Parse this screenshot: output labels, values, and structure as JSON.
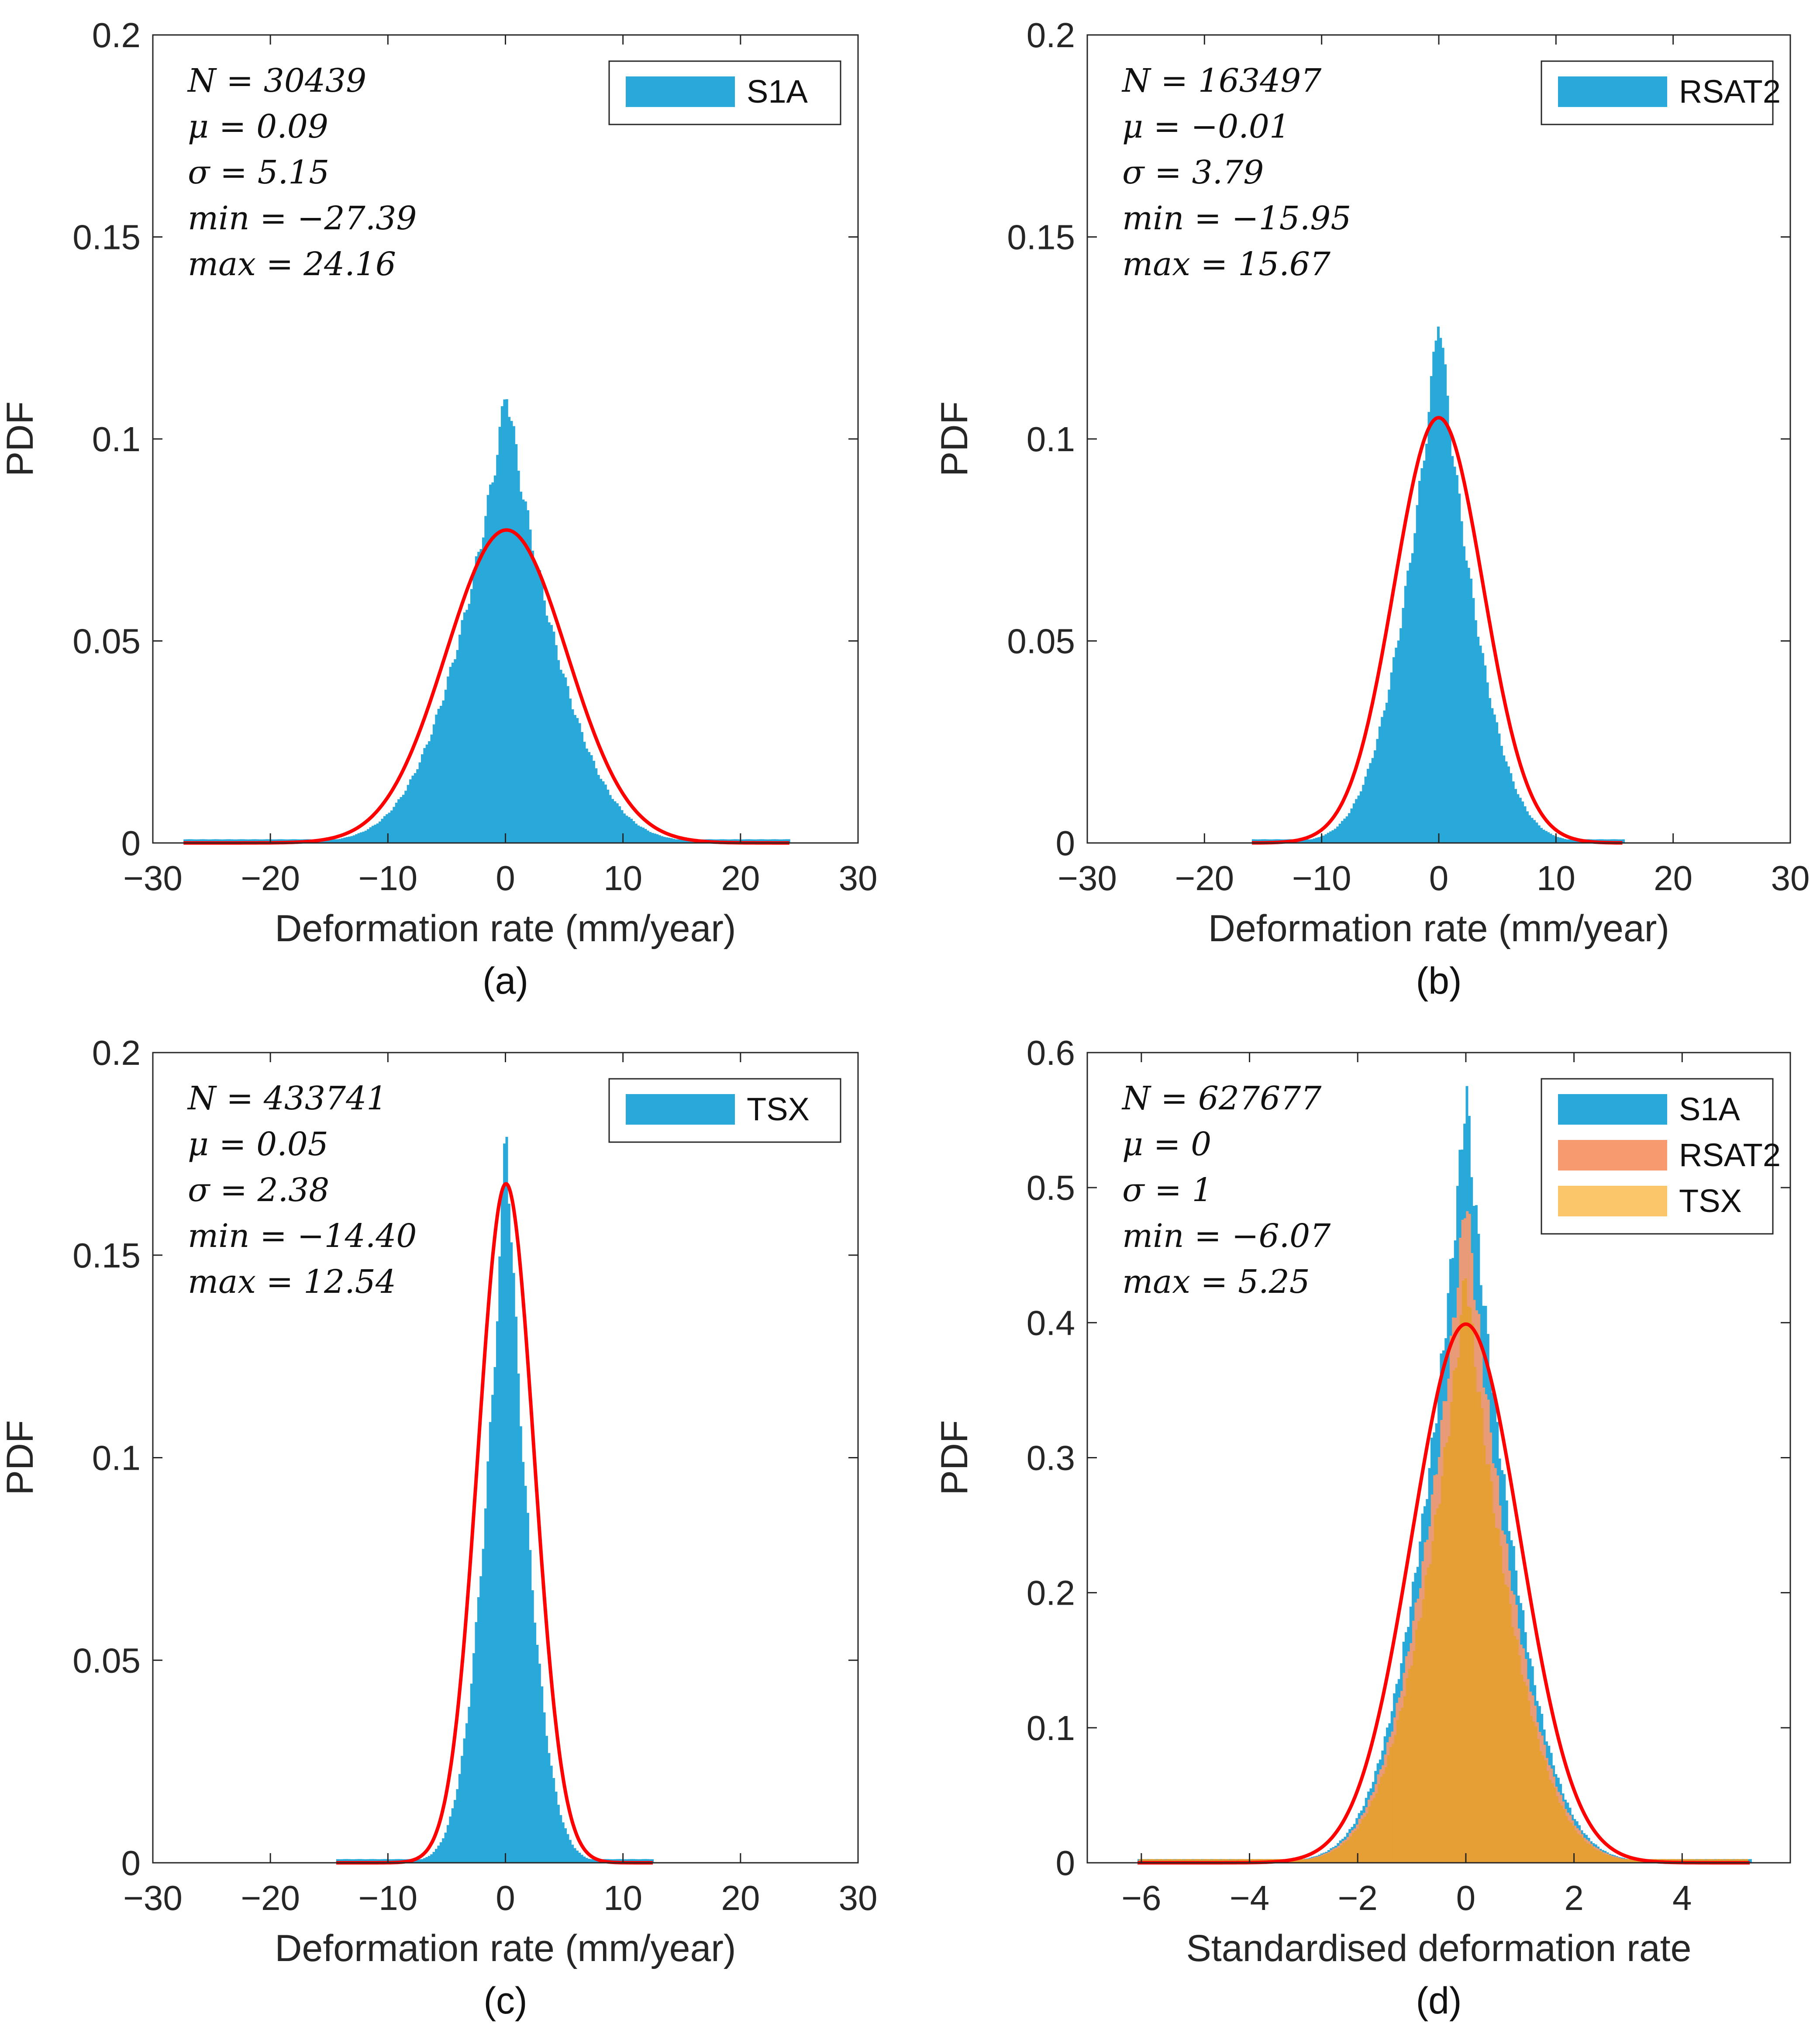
{
  "chart_data": [
    {
      "type": "histogram",
      "panel_label": "(a)",
      "xlabel": "Deformation rate (mm/year)",
      "ylabel": "PDF",
      "xlim": [
        -30,
        30
      ],
      "ylim": [
        0,
        0.2
      ],
      "xticks": [
        -30,
        -20,
        -10,
        0,
        10,
        20,
        30
      ],
      "xtick_labels": [
        "−30",
        "−20",
        "−10",
        "0",
        "10",
        "20",
        "30"
      ],
      "yticks": [
        0,
        0.05,
        0.1,
        0.15,
        0.2
      ],
      "ytick_labels": [
        "0",
        "0.05",
        "0.1",
        "0.15",
        "0.2"
      ],
      "stats": [
        "N = 30439",
        "μ = 0.09",
        "σ = 5.15",
        "min = −27.39",
        "max = 24.16"
      ],
      "legend_position": "top-right",
      "series": [
        {
          "name": "S1A",
          "color": "#29a9d9",
          "mu": 0.09,
          "sigma": 5.15,
          "peak": 0.113,
          "min": -27.39,
          "max": 24.16
        }
      ],
      "fit_curve": {
        "color": "#ff0000",
        "mu": 0.09,
        "sigma": 5.15,
        "x_range": [
          -27.39,
          24.16
        ]
      }
    },
    {
      "type": "histogram",
      "panel_label": "(b)",
      "xlabel": "Deformation rate (mm/year)",
      "ylabel": "PDF",
      "xlim": [
        -30,
        30
      ],
      "ylim": [
        0,
        0.2
      ],
      "xticks": [
        -30,
        -20,
        -10,
        0,
        10,
        20,
        30
      ],
      "xtick_labels": [
        "−30",
        "−20",
        "−10",
        "0",
        "10",
        "20",
        "30"
      ],
      "yticks": [
        0,
        0.05,
        0.1,
        0.15,
        0.2
      ],
      "ytick_labels": [
        "0",
        "0.05",
        "0.1",
        "0.15",
        "0.2"
      ],
      "stats": [
        "N = 163497",
        "μ = −0.01",
        "σ = 3.79",
        "min = −15.95",
        "max = 15.67"
      ],
      "legend_position": "top-right",
      "series": [
        {
          "name": "RSAT2",
          "color": "#29a9d9",
          "mu": -0.01,
          "sigma": 3.79,
          "peak": 0.133,
          "min": -15.95,
          "max": 15.67
        }
      ],
      "fit_curve": {
        "color": "#ff0000",
        "mu": -0.01,
        "sigma": 3.79,
        "x_range": [
          -15.95,
          15.67
        ]
      }
    },
    {
      "type": "histogram",
      "panel_label": "(c)",
      "xlabel": "Deformation rate (mm/year)",
      "ylabel": "PDF",
      "xlim": [
        -30,
        30
      ],
      "ylim": [
        0,
        0.2
      ],
      "xticks": [
        -30,
        -20,
        -10,
        0,
        10,
        20,
        30
      ],
      "xtick_labels": [
        "−30",
        "−20",
        "−10",
        "0",
        "10",
        "20",
        "30"
      ],
      "yticks": [
        0,
        0.05,
        0.1,
        0.15,
        0.2
      ],
      "ytick_labels": [
        "0",
        "0.05",
        "0.1",
        "0.15",
        "0.2"
      ],
      "stats": [
        "N = 433741",
        "μ = 0.05",
        "σ = 2.38",
        "min = −14.40",
        "max = 12.54"
      ],
      "legend_position": "top-right",
      "series": [
        {
          "name": "TSX",
          "color": "#29a9d9",
          "mu": 0.05,
          "sigma": 2.38,
          "peak": 0.186,
          "min": -14.4,
          "max": 12.54
        }
      ],
      "fit_curve": {
        "color": "#ff0000",
        "mu": 0.05,
        "sigma": 2.38,
        "x_range": [
          -14.4,
          12.54
        ]
      }
    },
    {
      "type": "histogram",
      "panel_label": "(d)",
      "xlabel": "Standardised deformation rate",
      "ylabel": "PDF",
      "xlim": [
        -7,
        6
      ],
      "ylim": [
        0,
        0.6
      ],
      "xticks": [
        -6,
        -4,
        -2,
        0,
        2,
        4
      ],
      "xtick_labels": [
        "−6",
        "−4",
        "−2",
        "0",
        "2",
        "4"
      ],
      "yticks": [
        0,
        0.1,
        0.2,
        0.3,
        0.4,
        0.5,
        0.6
      ],
      "ytick_labels": [
        "0",
        "0.1",
        "0.2",
        "0.3",
        "0.4",
        "0.5",
        "0.6"
      ],
      "stats": [
        "N = 627677",
        "μ = 0",
        "σ = 1",
        "min = −6.07",
        "max = 5.25"
      ],
      "legend_position": "top-right",
      "series": [
        {
          "name": "S1A",
          "color": "#29a9d9",
          "mu": 0,
          "sigma": 1,
          "peak": 0.575,
          "min": -6.07,
          "max": 5.25
        },
        {
          "name": "RSAT2",
          "color": "#f79a70",
          "mu": 0,
          "sigma": 1,
          "peak": 0.5,
          "min": -4.2,
          "max": 4.1
        },
        {
          "name": "TSX",
          "color": "#fbc66a",
          "mu": 0,
          "sigma": 1,
          "peak": 0.44,
          "min": -6.05,
          "max": 5.2
        }
      ],
      "overlap_color": "#e6a030",
      "fit_curve": {
        "color": "#ff0000",
        "mu": 0,
        "sigma": 1,
        "x_range": [
          -6.07,
          5.25
        ]
      }
    }
  ]
}
